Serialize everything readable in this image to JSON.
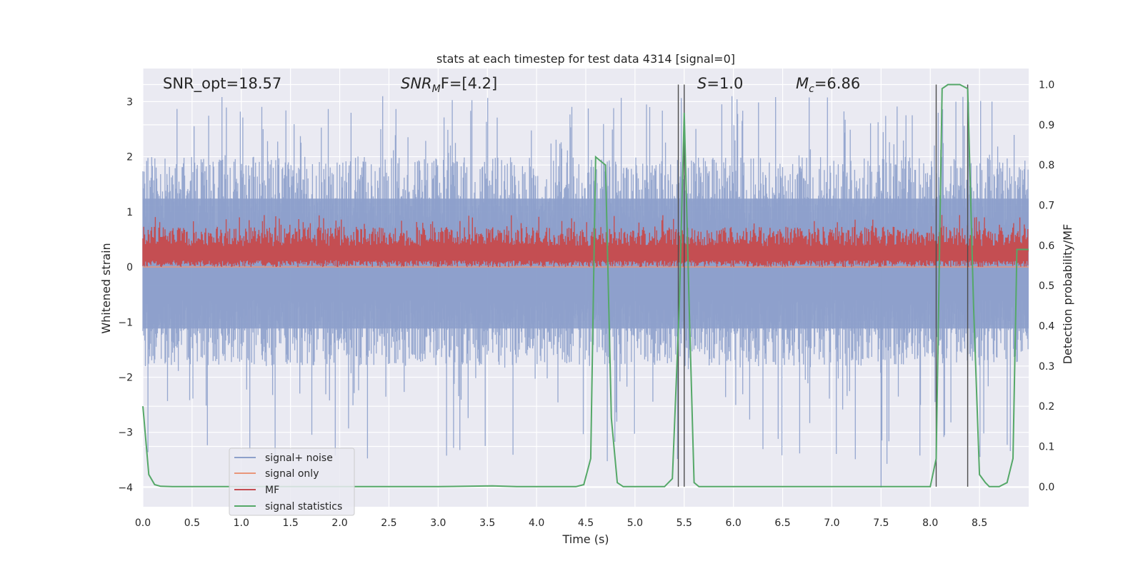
{
  "chart_data": {
    "type": "line",
    "title": "stats at each timestep for test data 4314 [signal=0]",
    "xlabel": "Time (s)",
    "ylabel": "Whitened strain",
    "y2label": "Detection probability/MF",
    "xlim": [
      0.0,
      9.0
    ],
    "ylim": [
      -4.35,
      3.6
    ],
    "y2lim": [
      -0.05,
      1.04
    ],
    "xticks": [
      "0.0",
      "0.5",
      "1.0",
      "1.5",
      "2.0",
      "2.5",
      "3.0",
      "3.5",
      "4.0",
      "4.5",
      "5.0",
      "5.5",
      "6.0",
      "6.5",
      "7.0",
      "7.5",
      "8.0",
      "8.5"
    ],
    "yticks": [
      "3",
      "2",
      "1",
      "0",
      "−1",
      "−2",
      "−3",
      "−4"
    ],
    "y2ticks": [
      "1.0",
      "0.9",
      "0.8",
      "0.7",
      "0.6",
      "0.5",
      "0.4",
      "0.3",
      "0.2",
      "0.1",
      "0.0"
    ],
    "grid": true,
    "legend_placement": "lower left",
    "annotations": {
      "snr_opt": "SNR_opt=18.57",
      "snr_mf_prefix": "SNR",
      "snr_mf_sub": "M",
      "snr_mf_suffix": "F=[4.2]",
      "s_var": "S",
      "s_val": "=1.0",
      "mc_var": "M",
      "mc_sub": "c",
      "mc_val": "=6.86"
    },
    "series": [
      {
        "name": "signal+ noise",
        "color": "#8da0cb",
        "noise_band_y": [
          -1.8,
          2.0
        ],
        "peak_range_y": [
          -3.6,
          3.1
        ]
      },
      {
        "name": "signal only",
        "color": "#e9967a",
        "y": 0.0
      },
      {
        "name": "MF",
        "color": "#c44e52",
        "band_y": [
          0.0,
          0.95
        ],
        "center_y": 0.3
      },
      {
        "name": "signal statistics",
        "color": "#55a868",
        "x": [
          0.0,
          0.06,
          0.12,
          0.18,
          0.3,
          1.0,
          2.0,
          3.0,
          3.55,
          3.8,
          4.4,
          4.48,
          4.55,
          4.6,
          4.65,
          4.7,
          4.76,
          4.82,
          4.88,
          5.0,
          5.3,
          5.38,
          5.45,
          5.5,
          5.55,
          5.6,
          5.65,
          5.75,
          6.0,
          7.0,
          7.8,
          8.0,
          8.06,
          8.12,
          8.18,
          8.24,
          8.3,
          8.38,
          8.44,
          8.5,
          8.56,
          8.6,
          8.7,
          8.78,
          8.84,
          8.88,
          9.0
        ],
        "y": [
          0.2,
          0.03,
          0.005,
          0.001,
          0.0,
          0.0,
          0.0,
          0.0,
          0.002,
          0.0,
          0.0,
          0.005,
          0.07,
          0.82,
          0.81,
          0.8,
          0.17,
          0.01,
          0.0,
          0.0,
          0.0,
          0.02,
          0.45,
          0.93,
          0.45,
          0.01,
          0.0,
          0.0,
          0.0,
          0.0,
          0.0,
          0.0,
          0.07,
          0.99,
          1.0,
          1.0,
          1.0,
          0.99,
          0.45,
          0.03,
          0.01,
          0.0,
          0.0,
          0.01,
          0.07,
          0.59,
          0.59
        ]
      }
    ],
    "vlines_x": [
      5.44,
      5.5,
      8.06,
      8.38
    ],
    "vline_color": "#4c4c4c"
  }
}
